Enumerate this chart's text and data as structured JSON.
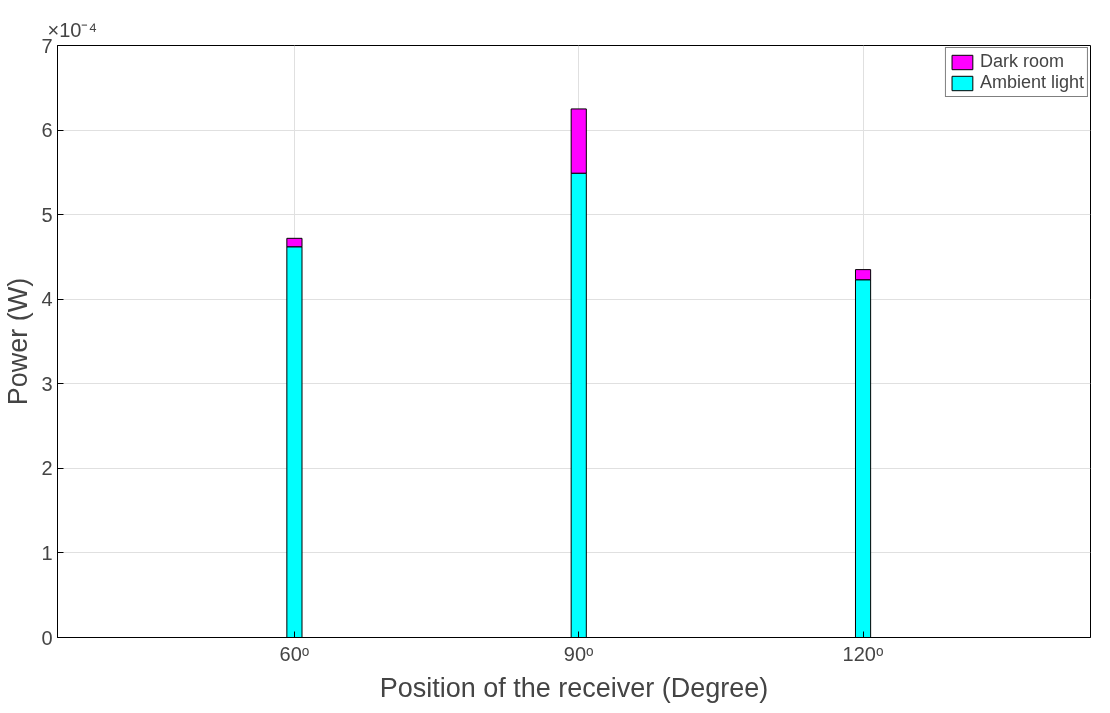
{
  "chart_data": {
    "type": "bar",
    "stacked": true,
    "xlabel": "Position of the receiver (Degree)",
    "ylabel": "Power (W)",
    "x": [
      60,
      90,
      120
    ],
    "series": [
      {
        "name": "Ambient light",
        "color": "#00ffff",
        "values": [
          4.62,
          5.49,
          4.23
        ]
      },
      {
        "name": "Dark room",
        "color": "#ff00ff",
        "values": [
          0.1,
          0.76,
          0.12
        ]
      }
    ],
    "xlim": [
      35,
      144
    ],
    "xticks": [
      {
        "value": 60,
        "label": "60ᵒ"
      },
      {
        "value": 90,
        "label": "90ᵒ"
      },
      {
        "value": 120,
        "label": "120ᵒ"
      }
    ],
    "ylim": [
      0,
      7
    ],
    "yticks": [
      0,
      1,
      2,
      3,
      4,
      5,
      6,
      7
    ],
    "annotations": [
      "×10⁻⁴"
    ],
    "grid": true,
    "legend": "top right"
  }
}
